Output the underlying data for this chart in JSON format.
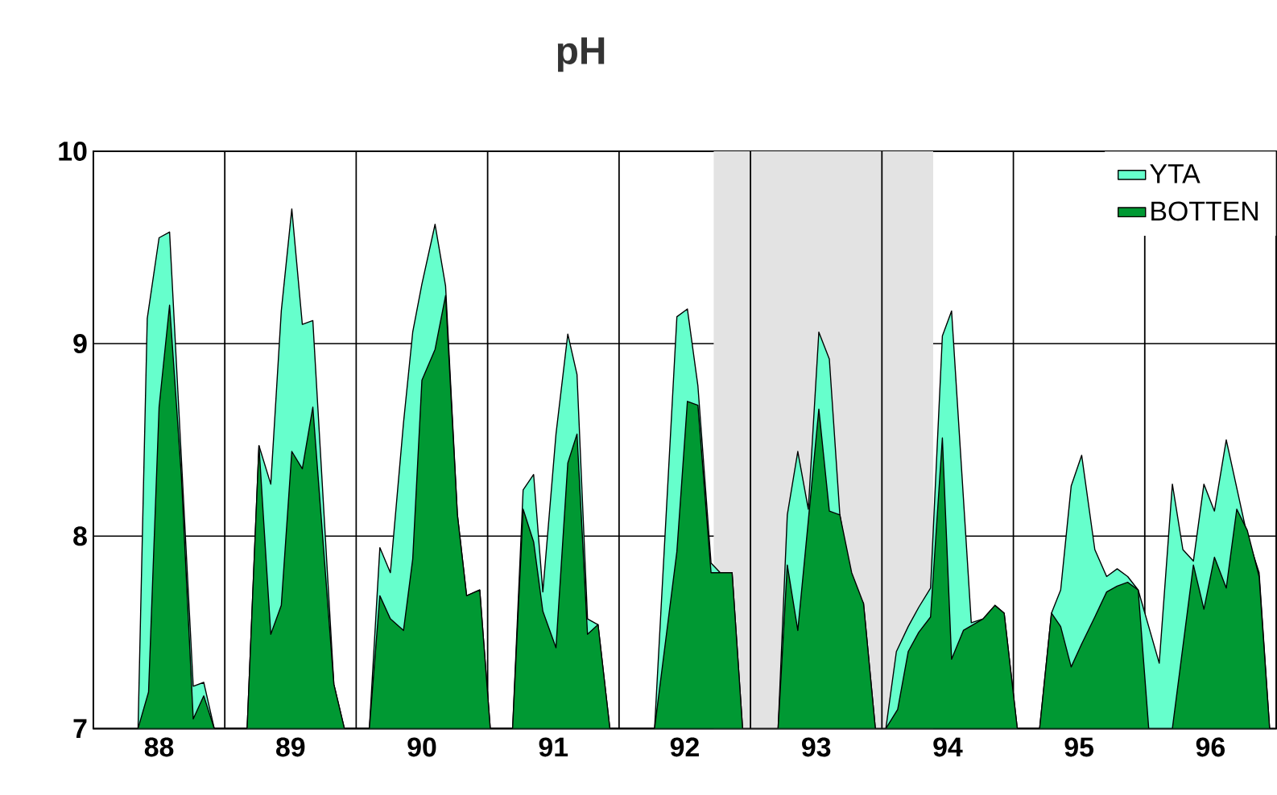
{
  "chart_data": {
    "type": "area",
    "title": "pH",
    "xlim": [
      88,
      97
    ],
    "ylim": [
      7,
      10
    ],
    "xticks": [
      {
        "value": 88.5,
        "label": "88"
      },
      {
        "value": 89.5,
        "label": "89"
      },
      {
        "value": 90.5,
        "label": "90"
      },
      {
        "value": 91.5,
        "label": "91"
      },
      {
        "value": 92.5,
        "label": "92"
      },
      {
        "value": 93.5,
        "label": "93"
      },
      {
        "value": 94.5,
        "label": "94"
      },
      {
        "value": 95.5,
        "label": "95"
      },
      {
        "value": 96.5,
        "label": "96"
      }
    ],
    "yticks": [
      7,
      8,
      9,
      10
    ],
    "grid": "y",
    "legend": "top right",
    "ref_lines": [
      {
        "axis": "x",
        "value": 89,
        "color": "#000000"
      },
      {
        "axis": "x",
        "value": 90,
        "color": "#000000"
      },
      {
        "axis": "x",
        "value": 91,
        "color": "#000000"
      },
      {
        "axis": "x",
        "value": 92,
        "color": "#000000"
      },
      {
        "axis": "x",
        "value": 93,
        "color": "#000000"
      },
      {
        "axis": "x",
        "value": 94,
        "color": "#000000"
      },
      {
        "axis": "x",
        "value": 95,
        "color": "#000000"
      },
      {
        "axis": "x",
        "value": 96,
        "color": "#000000"
      }
    ],
    "bands": [
      {
        "axis": "x",
        "from": 92.72,
        "to": 94.39,
        "color": "#e3e3e3"
      }
    ],
    "series": [
      {
        "name": "YTA",
        "color": "#66ffcc",
        "x": [
          88.34,
          88.41,
          88.5,
          88.58,
          88.76,
          88.84,
          88.92,
          89.17,
          89.26,
          89.35,
          89.43,
          89.51,
          89.59,
          89.67,
          89.83,
          89.91,
          90.1,
          90.18,
          90.26,
          90.36,
          90.43,
          90.5,
          90.6,
          90.68,
          90.77,
          90.84,
          90.94,
          91.02,
          91.19,
          91.27,
          91.35,
          91.42,
          91.52,
          91.61,
          91.68,
          91.76,
          91.84,
          91.93,
          92.27,
          92.44,
          92.52,
          92.6,
          92.7,
          92.77,
          92.86,
          92.94,
          93.21,
          93.28,
          93.36,
          93.44,
          93.52,
          93.6,
          93.68,
          93.77,
          93.86,
          93.95,
          94.03,
          94.11,
          94.2,
          94.28,
          94.37,
          94.46,
          94.53,
          94.68,
          94.77,
          94.86,
          94.93,
          95.03,
          95.2,
          95.29,
          95.36,
          95.44,
          95.52,
          95.62,
          95.71,
          95.79,
          95.87,
          95.95,
          96.11,
          96.21,
          96.29,
          96.37,
          96.45,
          96.53,
          96.62,
          96.7,
          96.78,
          96.87,
          96.95
        ],
        "values": [
          7,
          9.13,
          9.55,
          9.58,
          7.22,
          7.24,
          7,
          7,
          8.47,
          8.27,
          9.17,
          9.7,
          9.1,
          9.12,
          7.23,
          7,
          7,
          7.94,
          7.81,
          8.59,
          9.06,
          9.31,
          9.62,
          9.3,
          8.11,
          7.69,
          7.72,
          7,
          7,
          8.24,
          8.32,
          7.71,
          8.53,
          9.05,
          8.84,
          7.57,
          7.54,
          7,
          7,
          9.14,
          9.18,
          8.78,
          7.86,
          7.81,
          7.81,
          7,
          7,
          8.11,
          8.44,
          8.14,
          9.06,
          8.92,
          8.11,
          7.75,
          7.65,
          7,
          7,
          7.4,
          7.53,
          7.63,
          7.73,
          9.04,
          9.17,
          7.55,
          7.57,
          7.64,
          7.6,
          7,
          7,
          7.6,
          7.72,
          8.26,
          8.42,
          7.93,
          7.79,
          7.83,
          7.79,
          7.72,
          7.34,
          8.27,
          7.93,
          7.87,
          8.27,
          8.13,
          8.5,
          8.25,
          8.0,
          7.81,
          7
        ]
      },
      {
        "name": "BOTTEN",
        "color": "#009933",
        "x": [
          88.34,
          88.42,
          88.5,
          88.58,
          88.67,
          88.76,
          88.84,
          88.92,
          89.17,
          89.26,
          89.35,
          89.43,
          89.51,
          89.59,
          89.67,
          89.83,
          89.91,
          90.1,
          90.18,
          90.26,
          90.36,
          90.43,
          90.5,
          90.6,
          90.68,
          90.77,
          90.84,
          90.94,
          91.02,
          91.19,
          91.27,
          91.35,
          91.42,
          91.52,
          91.61,
          91.68,
          91.76,
          91.84,
          91.93,
          92.27,
          92.44,
          92.52,
          92.6,
          92.7,
          92.77,
          92.86,
          92.94,
          93.21,
          93.28,
          93.36,
          93.44,
          93.52,
          93.6,
          93.68,
          93.77,
          93.86,
          93.95,
          94.03,
          94.12,
          94.2,
          94.28,
          94.37,
          94.46,
          94.53,
          94.62,
          94.77,
          94.86,
          94.93,
          95.03,
          95.2,
          95.29,
          95.36,
          95.44,
          95.52,
          95.62,
          95.71,
          95.79,
          95.87,
          95.95,
          96.03,
          96.21,
          96.37,
          96.45,
          96.53,
          96.62,
          96.7,
          96.78,
          96.87,
          96.95
        ],
        "values": [
          7,
          7.19,
          8.67,
          9.2,
          8.31,
          7.05,
          7.17,
          7,
          7,
          8.47,
          7.49,
          7.64,
          8.44,
          8.35,
          8.67,
          7.23,
          7,
          7,
          7.69,
          7.57,
          7.51,
          7.88,
          8.81,
          8.97,
          9.25,
          8.11,
          7.69,
          7.72,
          7,
          7,
          8.14,
          7.97,
          7.61,
          7.42,
          8.38,
          8.53,
          7.49,
          7.54,
          7,
          7,
          7.92,
          8.7,
          8.68,
          7.81,
          7.81,
          7.81,
          7,
          7,
          7.85,
          7.51,
          8.08,
          8.66,
          8.13,
          8.11,
          7.81,
          7.65,
          7,
          7,
          7.1,
          7.4,
          7.5,
          7.58,
          8.51,
          7.36,
          7.51,
          7.57,
          7.64,
          7.6,
          7,
          7,
          7.6,
          7.53,
          7.32,
          7.44,
          7.58,
          7.71,
          7.74,
          7.76,
          7.72,
          7,
          7,
          7.85,
          7.62,
          7.89,
          7.73,
          8.14,
          8.03,
          7.79,
          7
        ]
      }
    ]
  }
}
